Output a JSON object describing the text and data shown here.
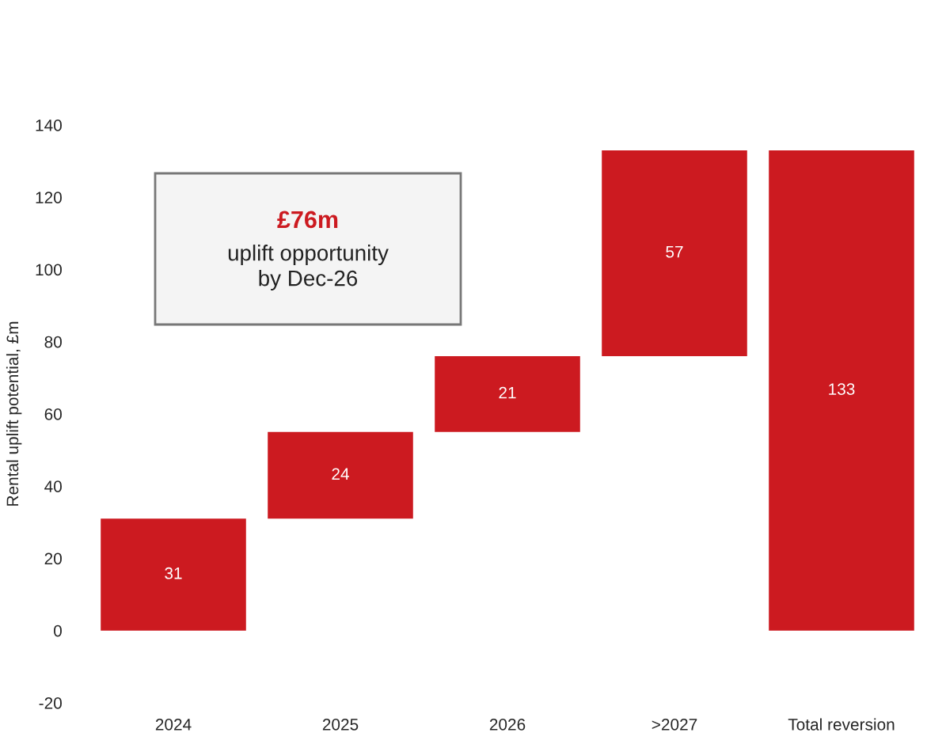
{
  "chart_data": {
    "type": "bar",
    "ylabel": "Rental uplift potential, £m",
    "categories": [
      "2024",
      "2025",
      "2026",
      ">2027",
      "Total reversion"
    ],
    "values": [
      31,
      24,
      21,
      57,
      133
    ],
    "base": [
      0,
      31,
      55,
      76,
      0
    ],
    "color": "#cc1a20",
    "ylim": [
      -20,
      140
    ],
    "yticks": [
      -20,
      0,
      20,
      40,
      60,
      80,
      100,
      120,
      140
    ],
    "data_labels": true,
    "grid": false,
    "annotations": [
      "£76m",
      "uplift opportunity\nby Dec-26"
    ]
  }
}
